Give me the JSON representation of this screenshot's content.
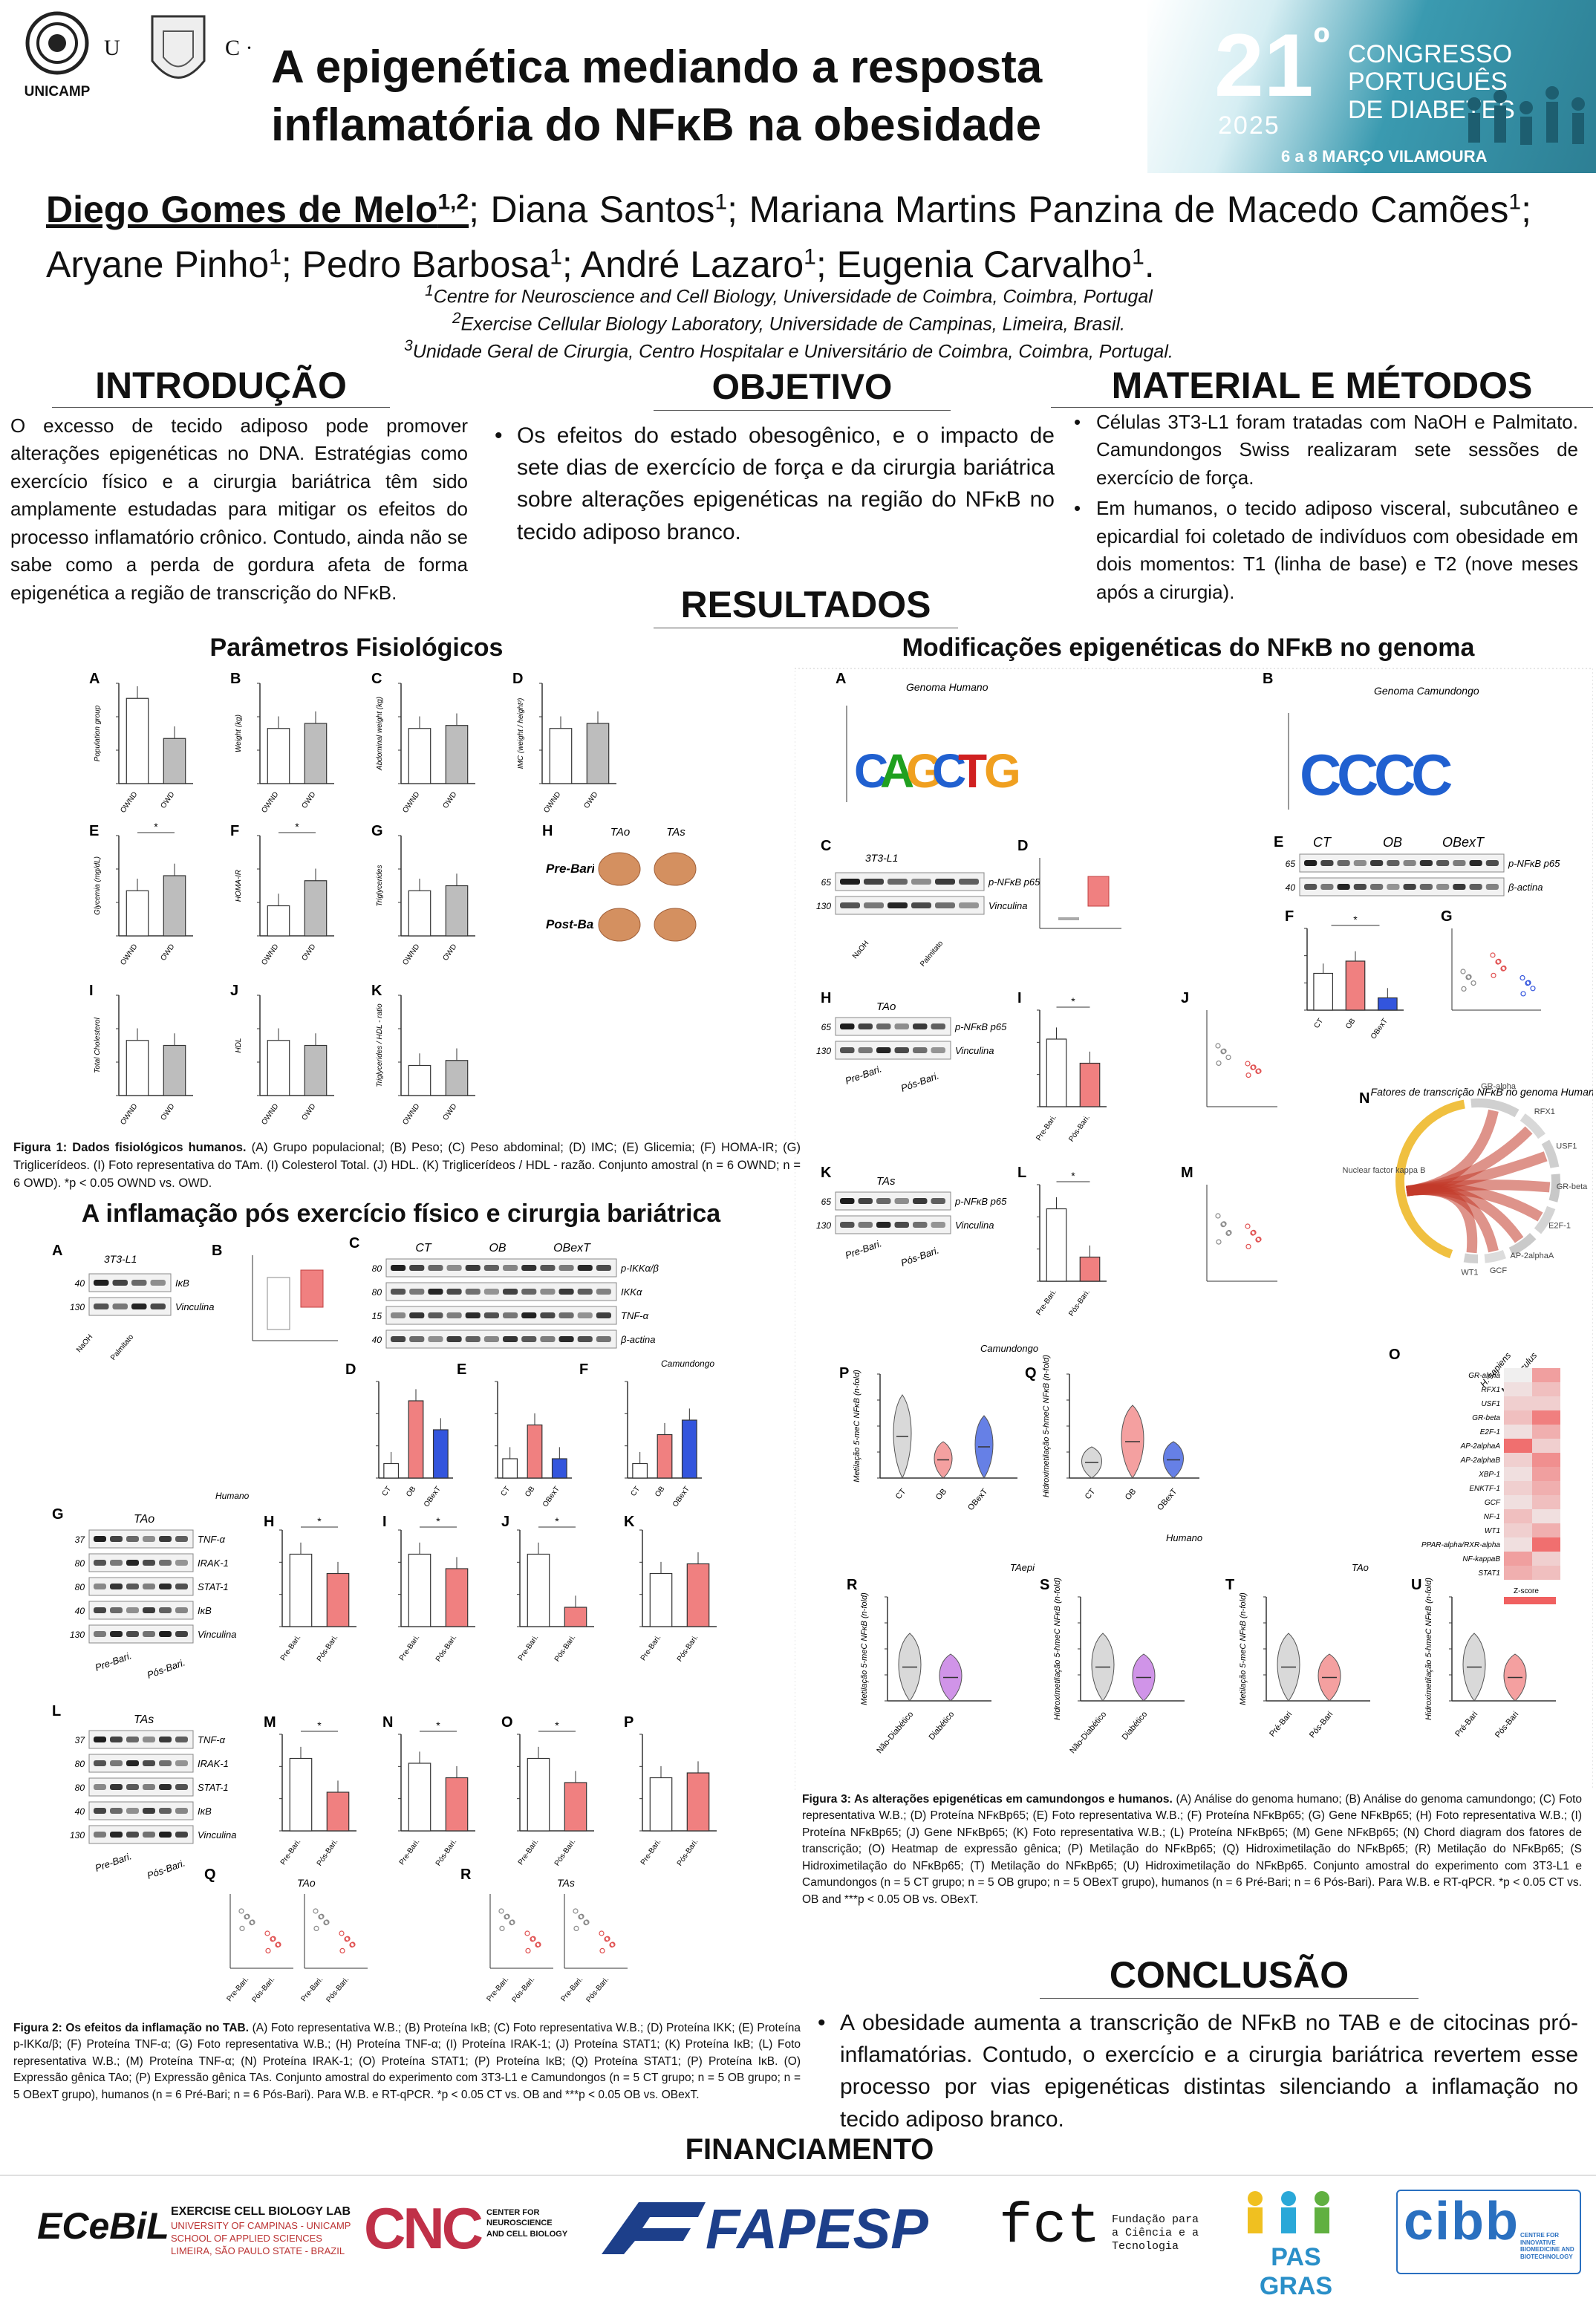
{
  "header": {
    "logo_unicamp": "UNICAMP",
    "title_line1": "A epigenética mediando a resposta",
    "title_line2": "inflamatória do NFκB na obesidade",
    "congress_number": "21",
    "congress_ordinal": "º",
    "congress_name_1": "CONGRESSO",
    "congress_name_2": "PORTUGUÊS",
    "congress_name_3": "DE DIABETES",
    "congress_year": "2025",
    "congress_dates": "6 a 8 MARÇO VILAMOURA"
  },
  "authors": {
    "main": "Diego Gomes de Melo",
    "main_sup": "1,2",
    "rest": [
      {
        "name": "; Diana Santos",
        "sup": "1"
      },
      {
        "name": "; Mariana Martins Panzina de Macedo Camões",
        "sup": "1"
      },
      {
        "name": "; Aryane Pinho",
        "sup": "1"
      },
      {
        "name": "; Pedro Barbosa",
        "sup": "1"
      },
      {
        "name": "; André Lazaro",
        "sup": "1"
      },
      {
        "name": "; Eugenia Carvalho",
        "sup": "1"
      }
    ],
    "end": "."
  },
  "affiliations": [
    {
      "sup": "1",
      "text": "Centre for Neuroscience and Cell Biology, Universidade de Coimbra, Coimbra, Portugal"
    },
    {
      "sup": "2",
      "text": "Exercise Cellular Biology Laboratory, Universidade de Campinas, Limeira, Brasil."
    },
    {
      "sup": "3",
      "text": "Unidade Geral de Cirurgia, Centro Hospitalar e Universitário de Coimbra, Coimbra, Portugal."
    }
  ],
  "intro": {
    "heading": "INTRODUÇÃO",
    "text": "O excesso de tecido adiposo pode promover alterações epigenéticas no DNA. Estratégias como exercício físico e a cirurgia bariátrica têm sido amplamente estudadas para mitigar os efeitos do processo inflamatório crônico. Contudo, ainda não se sabe como a perda de gordura afeta de forma epigenética a região de transcrição do NFκB."
  },
  "objective": {
    "heading": "OBJETIVO",
    "text": "Os efeitos do estado obesogênico, e o impacto de sete dias de exercício de força e da cirurgia bariátrica sobre alterações epigenéticas na região do NFκB no tecido adiposo branco."
  },
  "methods": {
    "heading": "MATERIAL E MÉTODOS",
    "items": [
      "Células 3T3-L1 foram tratadas com NaOH e Palmitato. Camundongos Swiss realizaram sete sessões de exercício de força.",
      "Em humanos, o tecido adiposo visceral, subcutâneo e epicardial foi coletado de indivíduos com obesidade em dois momentos: T1 (linha de base) e T2 (nove meses após a cirurgia)."
    ]
  },
  "results_heading": "RESULTADOS",
  "fig1": {
    "heading": "Parâmetros Fisiológicos",
    "letters": [
      "A",
      "B",
      "C",
      "D",
      "E",
      "F",
      "G",
      "H",
      "I",
      "J",
      "K"
    ],
    "ylabels": [
      "Population group",
      "Weight (kg)",
      "Abdominal weight (kg)",
      "IMC (weight / height²)",
      "Glycemia (mg/dL)",
      "HOMA-IR",
      "Triglycerides",
      "",
      "Total Cholesterol",
      "HDL",
      "Triglycerides / HDL - ratio"
    ],
    "xcats": [
      "OWND",
      "OWD"
    ],
    "photo_cols": [
      "TAo",
      "TAs"
    ],
    "photo_rows": [
      "Pre-Bari",
      "Post-Bari"
    ],
    "caption_bold": "Figura 1: Dados fisiológicos humanos.",
    "caption": " (A) Grupo populacional; (B) Peso; (C) Peso abdominal; (D) IMC; (E) Glicemia; (F) HOMA-IR; (G) Triglicerídeos. (I) Foto representativa do TAm. (I) Colesterol Total. (J) HDL. (K) Triglicerídeos / HDL - razão. Conjunto amostral (n = 6 OWND; n = 6 OWD). *p < 0.05 OWND vs. OWD."
  },
  "fig2": {
    "heading": "A inflamação pós exercício físico e cirurgia bariátrica",
    "panel_a_title": "3T3-L1",
    "panel_a_bands": [
      "IκB",
      "Vinculina"
    ],
    "panel_a_mw": [
      "40",
      "130"
    ],
    "panel_c_groups": [
      "CT",
      "OB",
      "OBexT"
    ],
    "panel_c_bands": [
      "p-IKKα/β",
      "IKKα",
      "TNF-α",
      "β-actina"
    ],
    "panel_c_mw": [
      "80",
      "80",
      "15",
      "40"
    ],
    "camundongo_label": "Camundongo",
    "humano_label": "Humano",
    "g_title": "TAo",
    "l_title": "TAs",
    "human_bands": [
      "TNF-α",
      "IRAK-1",
      "STAT-1",
      "IκB",
      "Vinculina"
    ],
    "human_mw": [
      "37",
      "80",
      "80",
      "40",
      "130"
    ],
    "lanes": [
      "Pre-Bari.",
      "Pós-Bari."
    ],
    "q_title": "TAo",
    "r_title": "TAs",
    "caption_bold": "Figura 2: Os efeitos da inflamação no TAB.",
    "caption": " (A) Foto representativa W.B.; (B) Proteína IκB; (C) Foto representativa W.B.; (D) Proteína IKK; (E) Proteína p-IKKα/β; (F) Proteína TNF-α; (G) Foto representativa W.B.; (H) Proteína TNF-α; (I) Proteína IRAK-1; (J) Proteína STAT1; (K) Proteína IκB; (L) Foto representativa W.B.; (M) Proteína TNF-α; (N) Proteína IRAK-1; (O) Proteína STAT1; (P) Proteína IκB; (Q) Proteína STAT1; (P) Proteína IκB. (O) Expressão gênica TAo; (P) Expressão gênica TAs. Conjunto amostral do experimento com 3T3-L1 e Camundongos (n = 5 CT grupo; n = 5 OB grupo; n = 5 OBexT grupo), humanos (n = 6 Pré-Bari; n = 6 Pós-Bari). Para W.B. e RT-qPCR. *p < 0.05 CT vs. OB and ***p < 0.05 OB vs. OBexT."
  },
  "fig3": {
    "heading": "Modificações epigenéticas do NFκB no genoma",
    "a_title": "Genoma Humano",
    "b_title": "Genoma Camundongo",
    "c_title": "3T3-L1",
    "c_bands": [
      "p-NFκB p65",
      "Vinculina"
    ],
    "c_mw": [
      "65",
      "130"
    ],
    "c_lanes": [
      "NaOH",
      "Palmitato"
    ],
    "e_groups": [
      "CT",
      "OB",
      "OBexT"
    ],
    "e_bands": [
      "p-NFκB p65",
      "β-actina"
    ],
    "e_mw": [
      "65",
      "40"
    ],
    "h_title": "TAo",
    "k_title": "TAs",
    "hk_bands": [
      "p-NFκB p65",
      "Vinculina"
    ],
    "hk_mw": [
      "65",
      "130"
    ],
    "lanes": [
      "Pre-Bari.",
      "Pós-Bari."
    ],
    "n_title": "Fatores de transcrição NFκB no genoma Humano",
    "chord_labels": [
      "GR-alpha",
      "RFX1",
      "USF1",
      "GR-beta",
      "E2F-1",
      "AP-2alphaA",
      "GCF",
      "WT1",
      "Nuclear factor kappa B"
    ],
    "heatmap_cols": [
      "H. sapiens",
      "M. musculus"
    ],
    "heatmap_rows": [
      "GR-alpha",
      "RFX1",
      "USF1",
      "GR-beta",
      "E2F-1",
      "AP-2alphaA",
      "AP-2alphaB",
      "XBP-1",
      "ENKTF-1",
      "GCF",
      "NF-1",
      "WT1",
      "PPAR-alpha/RXR-alpha",
      "NF-kappaB",
      "STAT1"
    ],
    "heatmap_legend": "Z-score",
    "camundongo_label": "Camundongo",
    "humano_label": "Humano",
    "tapei_label": "TAepi",
    "tao_label": "TAo",
    "violin_p_ylabel": "Metilação 5-meC NFκB (n-fold)",
    "violin_q_ylabel": "Hidroximetilação 5-hmeC NFκB (n-fold)",
    "violin_groups_mouse": [
      "CT",
      "OB",
      "OBexT"
    ],
    "violin_groups_epi": [
      "Não-Diabético",
      "Diabético"
    ],
    "violin_groups_tao": [
      "Pré-Bari",
      "Pós-Bari"
    ],
    "caption_bold": "Figura 3: As alterações epigenéticas em camundongos e humanos.",
    "caption": " (A) Análise do genoma humano; (B) Análise do genoma camundongo; (C) Foto representativa W.B.; (D) Proteína NFκBp65; (E) Foto representativa W.B.; (F) Proteína NFκBp65; (G) Gene NFκBp65; (H) Foto representativa W.B.; (I) Proteína NFκBp65; (J) Gene NFκBp65; (K) Foto representativa W.B.; (L) Proteína NFκBp65; (M) Gene NFκBp65; (N) Chord diagram dos fatores de transcrição; (O) Heatmap de expressão gênica; (P) Metilação do NFκBp65; (Q) Hidroximetilação do NFκBp65; (R) Metilação do NFκBp65; (S Hidroximetilação do NFκBp65; (T) Metilação do NFκBp65; (U) Hidroximetilação do NFκBp65. Conjunto amostral do experimento com 3T3-L1 e Camundongos (n = 5 CT grupo; n = 5 OB grupo; n = 5 OBexT grupo), humanos (n = 6 Pré-Bari; n = 6 Pós-Bari). Para W.B. e RT-qPCR. *p < 0.05 CT vs. OB and ***p < 0.05 OB vs. OBexT."
  },
  "conclusion": {
    "heading": "CONCLUSÃO",
    "text": "A obesidade aumenta a transcrição de NFκB no TAB e de citocinas pró-inflamatórias. Contudo, o exercício e a cirurgia bariátrica revertem esse processo por vias epigenéticas distintas silenciando a inflamação no tecido adiposo branco."
  },
  "funding": {
    "heading": "FINANCIAMENTO",
    "logos": [
      "ECeBiL",
      "EXERCISE CELL BIOLOGY LAB",
      "UNIVERSITY OF CAMPINAS - UNICAMP",
      "SCHOOL OF APPLIED SCIENCES",
      "LIMEIRA, SÃO PAULO STATE - BRAZIL",
      "CNC",
      "CENTER FOR NEUROSCIENCE AND CELL BIOLOGY",
      "FAPESP",
      "fct",
      "Fundação para a Ciência e a Tecnologia",
      "PAS GRAS",
      "cibb",
      "CENTRE FOR INNOVATIVE BIOMEDICINE AND BIOTECHNOLOGY"
    ]
  },
  "colors": {
    "red": "#f08080",
    "dark_red": "#e05050",
    "blue": "#3355dd",
    "gray_bar": "#bdbdbd",
    "purple": "#c070e0",
    "congress_bg": "#3a9ab0"
  }
}
